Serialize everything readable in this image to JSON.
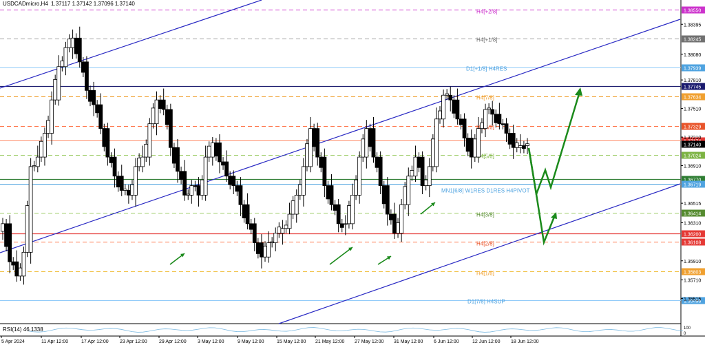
{
  "header": {
    "symbol": "USDCADmicro,H4",
    "ohlc": "1.37117 1.37142 1.37096 1.37140"
  },
  "rsi": {
    "label": "RSI(14) 46.1338",
    "levels_right": [
      "100",
      "0"
    ]
  },
  "colors": {
    "candle": "#000000",
    "channel": "#2b2bc4",
    "resistance_navy": "#1a1a6e",
    "support_green": "#2e7d32",
    "pivot_red": "#e53935",
    "arrow_green": "#1b8a1b",
    "magenta": "#cc33cc",
    "orange": "#f0a030"
  },
  "chart_data": {
    "type": "candlestick",
    "symbol": "USDCADmicro",
    "timeframe": "H4",
    "ylim": [
      1.3525,
      1.3865
    ],
    "x_ticks": [
      "5 Apr 2024",
      "11 Apr 12:00",
      "17 Apr 12:00",
      "23 Apr 12:00",
      "29 Apr 12:00",
      "3 May 12:00",
      "9 May 12:00",
      "15 May 12:00",
      "21 May 12:00",
      "27 May 12:00",
      "31 May 12:00",
      "6 Jun 12:00",
      "12 Jun 12:00",
      "18 Jun 12:00"
    ],
    "y_ticks": [
      "1.38395",
      "1.38080",
      "1.37810",
      "1.37510",
      "1.37210",
      "1.36910",
      "1.36515",
      "1.36310",
      "1.35910",
      "1.35710",
      "1.35515"
    ],
    "current_price": "1.37140",
    "levels": [
      {
        "label": "H4[+2/8]",
        "price": 1.3855,
        "tag": "1.38550",
        "color": "#cc33cc",
        "style": "dashed",
        "tag_fill": "#cc33cc"
      },
      {
        "label": "H4[+1/8]",
        "price": 1.38245,
        "tag": "1.38245",
        "color": "#9e9e9e",
        "style": "dashed",
        "tag_fill": "#707070"
      },
      {
        "label": "D1[+1/8] H4RES",
        "price": 1.37939,
        "tag": "1.37939",
        "color": "#90caf9",
        "style": "solid",
        "tag_fill": "#4fa3e0"
      },
      {
        "label": "",
        "price": 1.37745,
        "tag": "1.37745",
        "color": "#1a1a6e",
        "style": "solid",
        "tag_fill": "#1a1a6e"
      },
      {
        "label": "H4[7/8]",
        "price": 1.37634,
        "tag": "1.37634",
        "color": "#f0a030",
        "style": "dashed",
        "tag_fill": "#f0a030"
      },
      {
        "label": "H4[6/8]",
        "price": 1.37329,
        "tag": "1.37329",
        "color": "#ff7043",
        "style": "dashed",
        "tag_fill": "#e8542a"
      },
      {
        "label": "",
        "price": 1.37174,
        "tag": "1.37174",
        "color": "#ff8a65",
        "style": "solid",
        "tag_fill": "#e53935"
      },
      {
        "label": "H4[5/8]",
        "price": 1.37024,
        "tag": "1.37024",
        "color": "#9ccc65",
        "style": "dashed",
        "tag_fill": "#7cb342"
      },
      {
        "label": "",
        "price": 1.3677,
        "tag": "1.36770",
        "color": "#2e7d32",
        "style": "solid",
        "tag_fill": "#2e7d32"
      },
      {
        "label": "MN1[6/8] W1RES D1RES H4PIVOT",
        "price": 1.36719,
        "tag": "1.36719",
        "color": "#4fa3e0",
        "style": "solid",
        "tag_fill": "#4fa3e0"
      },
      {
        "label": "H4[3/8]",
        "price": 1.36414,
        "tag": "1.36414",
        "color": "#9ccc65",
        "style": "dashed",
        "tag_fill": "#558b2f"
      },
      {
        "label": "",
        "price": 1.362,
        "tag": "1.36200",
        "color": "#e53935",
        "style": "solid",
        "tag_fill": "#e53935"
      },
      {
        "label": "H4[2/8]",
        "price": 1.36108,
        "tag": "1.36108",
        "color": "#ff7043",
        "style": "dashed",
        "tag_fill": "#e53935"
      },
      {
        "label": "H4[1/8]",
        "price": 1.35803,
        "tag": "1.35803",
        "color": "#f0c040",
        "style": "dashed",
        "tag_fill": "#f0a030"
      },
      {
        "label": "D1[7/8] H4SUP",
        "price": 1.35498,
        "tag": "1.35498",
        "color": "#90caf9",
        "style": "solid",
        "tag_fill": "#4fa3e0"
      }
    ],
    "candle_closes": [
      1.363,
      1.359,
      1.3575,
      1.36,
      1.369,
      1.37,
      1.3725,
      1.376,
      1.3795,
      1.3815,
      1.3825,
      1.38,
      1.377,
      1.3755,
      1.373,
      1.37,
      1.368,
      1.3665,
      1.366,
      1.369,
      1.37,
      1.3735,
      1.376,
      1.375,
      1.371,
      1.3685,
      1.366,
      1.367,
      1.366,
      1.37,
      1.3715,
      1.3695,
      1.368,
      1.367,
      1.365,
      1.363,
      1.361,
      1.3595,
      1.361,
      1.362,
      1.3625,
      1.364,
      1.366,
      1.369,
      1.373,
      1.37,
      1.367,
      1.365,
      1.363,
      1.363,
      1.366,
      1.37,
      1.373,
      1.37,
      1.367,
      1.364,
      1.362,
      1.365,
      1.368,
      1.37,
      1.367,
      1.369,
      1.374,
      1.3765,
      1.376,
      1.374,
      1.372,
      1.37,
      1.373,
      1.375,
      1.3745,
      1.3735,
      1.3725,
      1.371,
      1.3712,
      1.3714
    ]
  }
}
